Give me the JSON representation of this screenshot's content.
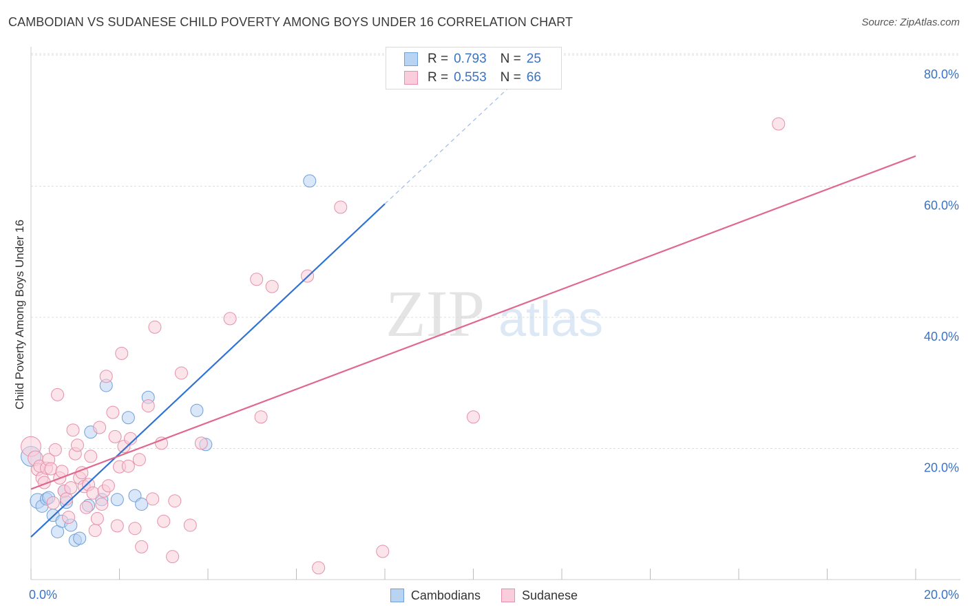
{
  "title": "CAMBODIAN VS SUDANESE CHILD POVERTY AMONG BOYS UNDER 16 CORRELATION CHART",
  "source": "Source: ZipAtlas.com",
  "watermark": {
    "zip": "ZIP",
    "atlas": "atlas"
  },
  "colors": {
    "cambodian_fill": "#b9d3f3",
    "cambodian_stroke": "#6f9fd8",
    "cambodian_line": "#2f72d3",
    "sudanese_fill": "#f9cddb",
    "sudanese_stroke": "#e78faa",
    "sudanese_line": "#e0688f",
    "tick_label": "#3a72c4",
    "grid": "#dddddd"
  },
  "legend": {
    "r_label": "R =",
    "n_label": "N =",
    "entries": [
      {
        "r": "0.793",
        "n": "25"
      },
      {
        "r": "0.553",
        "n": "66"
      }
    ]
  },
  "chart_data": {
    "type": "scatter",
    "title": "CAMBODIAN VS SUDANESE CHILD POVERTY AMONG BOYS UNDER 16 CORRELATION CHART",
    "xlabel": "",
    "ylabel": "Child Poverty Among Boys Under 16",
    "xlim": [
      0,
      20
    ],
    "ylim": [
      0,
      80
    ],
    "x_tick_labels": [
      "0.0%",
      "20.0%"
    ],
    "y_ticks": [
      20,
      40,
      60,
      80
    ],
    "y_tick_labels": [
      "20.0%",
      "40.0%",
      "60.0%",
      "80.0%"
    ],
    "grid": true,
    "legend_position": "top-center",
    "series": [
      {
        "name": "Cambodians",
        "r": 0.793,
        "n": 25,
        "trend": {
          "x0": 0,
          "y0": 6.5,
          "x1": 8.0,
          "y1": 57.3,
          "dash_to_x": 11.0,
          "dash_to_y": 76.3
        },
        "points": [
          [
            0.0,
            18.8,
            1.6
          ],
          [
            0.15,
            12.0,
            1.2
          ],
          [
            0.25,
            11.2,
            1.0
          ],
          [
            0.35,
            12.3,
            1.0
          ],
          [
            0.4,
            12.5,
            1.0
          ],
          [
            0.5,
            9.8,
            1.0
          ],
          [
            0.6,
            7.3,
            1.0
          ],
          [
            0.7,
            8.9,
            1.0
          ],
          [
            0.75,
            13.5,
            1.0
          ],
          [
            0.8,
            11.8,
            1.0
          ],
          [
            0.9,
            8.3,
            1.0
          ],
          [
            1.0,
            6.0,
            1.0
          ],
          [
            1.1,
            6.3,
            1.0
          ],
          [
            1.3,
            11.3,
            1.0
          ],
          [
            1.35,
            22.5,
            1.0
          ],
          [
            1.6,
            12.2,
            1.0
          ],
          [
            1.7,
            29.6,
            1.0
          ],
          [
            1.95,
            12.2,
            1.0
          ],
          [
            2.2,
            24.7,
            1.0
          ],
          [
            2.35,
            12.8,
            1.0
          ],
          [
            2.5,
            11.5,
            1.0
          ],
          [
            2.65,
            27.8,
            1.0
          ],
          [
            3.75,
            25.8,
            1.0
          ],
          [
            3.95,
            20.6,
            1.0
          ],
          [
            6.3,
            60.8,
            1.0
          ]
        ]
      },
      {
        "name": "Sudanese",
        "r": 0.553,
        "n": 66,
        "trend": {
          "x0": 0,
          "y0": 13.8,
          "x1": 20.0,
          "y1": 64.6
        },
        "points": [
          [
            0.0,
            20.3,
            1.6
          ],
          [
            0.1,
            18.5,
            1.2
          ],
          [
            0.15,
            16.8,
            1.0
          ],
          [
            0.2,
            17.3,
            1.0
          ],
          [
            0.25,
            15.5,
            1.0
          ],
          [
            0.3,
            14.8,
            1.0
          ],
          [
            0.35,
            17.0,
            1.0
          ],
          [
            0.4,
            18.3,
            1.0
          ],
          [
            0.45,
            16.9,
            1.0
          ],
          [
            0.5,
            11.7,
            1.0
          ],
          [
            0.55,
            19.8,
            1.0
          ],
          [
            0.6,
            28.2,
            1.0
          ],
          [
            0.65,
            15.5,
            1.0
          ],
          [
            0.7,
            16.5,
            1.0
          ],
          [
            0.75,
            13.5,
            1.0
          ],
          [
            0.8,
            12.3,
            1.0
          ],
          [
            0.85,
            9.5,
            1.0
          ],
          [
            0.9,
            14.0,
            1.0
          ],
          [
            0.95,
            22.8,
            1.0
          ],
          [
            1.0,
            19.2,
            1.0
          ],
          [
            1.05,
            20.5,
            1.0
          ],
          [
            1.1,
            15.5,
            1.0
          ],
          [
            1.15,
            16.3,
            1.0
          ],
          [
            1.2,
            14.2,
            1.0
          ],
          [
            1.25,
            11.0,
            1.0
          ],
          [
            1.3,
            14.5,
            1.0
          ],
          [
            1.35,
            18.8,
            1.0
          ],
          [
            1.4,
            13.2,
            1.0
          ],
          [
            1.45,
            7.5,
            1.0
          ],
          [
            1.5,
            9.3,
            1.0
          ],
          [
            1.55,
            23.2,
            1.0
          ],
          [
            1.6,
            11.5,
            1.0
          ],
          [
            1.65,
            13.5,
            1.0
          ],
          [
            1.7,
            31.0,
            1.0
          ],
          [
            1.75,
            14.3,
            1.0
          ],
          [
            1.85,
            25.5,
            1.0
          ],
          [
            1.9,
            21.8,
            1.0
          ],
          [
            1.95,
            8.2,
            1.0
          ],
          [
            2.0,
            17.2,
            1.0
          ],
          [
            2.05,
            34.5,
            1.0
          ],
          [
            2.1,
            20.3,
            1.0
          ],
          [
            2.2,
            17.3,
            1.0
          ],
          [
            2.25,
            21.5,
            1.0
          ],
          [
            2.35,
            7.8,
            1.0
          ],
          [
            2.45,
            18.3,
            1.0
          ],
          [
            2.5,
            5.0,
            1.0
          ],
          [
            2.65,
            26.5,
            1.0
          ],
          [
            2.75,
            12.3,
            1.0
          ],
          [
            2.8,
            38.5,
            1.0
          ],
          [
            2.95,
            20.8,
            1.0
          ],
          [
            3.0,
            8.9,
            1.0
          ],
          [
            3.2,
            3.5,
            1.0
          ],
          [
            3.25,
            12.0,
            1.0
          ],
          [
            3.4,
            31.5,
            1.0
          ],
          [
            3.6,
            8.3,
            1.0
          ],
          [
            3.85,
            20.8,
            1.0
          ],
          [
            4.5,
            39.8,
            1.0
          ],
          [
            5.1,
            45.8,
            1.0
          ],
          [
            5.2,
            24.8,
            1.0
          ],
          [
            5.45,
            44.7,
            1.0
          ],
          [
            6.25,
            46.3,
            1.0
          ],
          [
            6.5,
            1.8,
            1.0
          ],
          [
            7.0,
            56.8,
            1.0
          ],
          [
            7.95,
            4.3,
            1.0
          ],
          [
            10.0,
            24.8,
            1.0
          ],
          [
            16.9,
            69.5,
            1.0
          ]
        ]
      }
    ],
    "legend_entries": [
      "Cambodians",
      "Sudanese"
    ]
  }
}
